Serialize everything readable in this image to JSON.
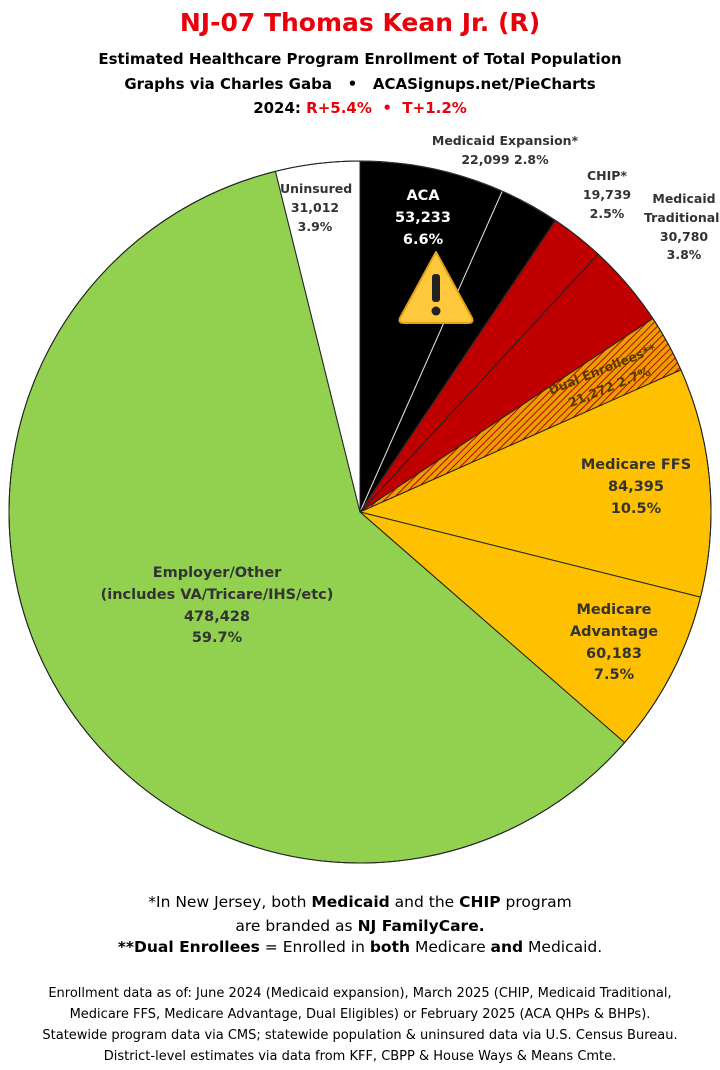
{
  "chart_data": {
    "type": "pie",
    "title": "NJ-07 Thomas Kean Jr. (R)",
    "subtitle": "Estimated Healthcare Program Enrollment of Total Population",
    "credit": {
      "left": "Graphs via Charles Gaba",
      "separator": "•",
      "right": "ACASignups.net/PieCharts"
    },
    "election": {
      "label": "2024:",
      "r": "R+5.4%",
      "separator": "•",
      "t": "T+1.2%",
      "color": "#e8000b"
    },
    "categories": [
      "ACA",
      "Medicaid Expansion*",
      "CHIP*",
      "Medicaid Traditional*",
      "Dual Enrollees**",
      "Medicare FFS",
      "Medicare Advantage",
      "Employer/Other",
      "Uninsured"
    ],
    "category_notes": [
      null,
      null,
      null,
      null,
      null,
      null,
      null,
      "(includes VA/Tricare/IHS/etc)",
      null
    ],
    "values": [
      53233,
      22099,
      19739,
      30780,
      21272,
      84395,
      60183,
      478428,
      31012
    ],
    "value_labels": [
      "53,233",
      "22,099",
      "19,739",
      "30,780",
      "21,272",
      "84,395",
      "60,183",
      "478,428",
      "31,012"
    ],
    "percent_labels": [
      "6.6%",
      "2.8%",
      "2.5%",
      "3.8%",
      "2.7%",
      "10.5%",
      "7.5%",
      "59.7%",
      "3.9%"
    ],
    "colors": [
      "#000000",
      "#000000",
      "#c00000",
      "#c00000",
      "#e8a000",
      "#ffc000",
      "#ffc000",
      "#92d050",
      "#ffffff"
    ],
    "hatch": {
      "index": 4,
      "color": "#c00000"
    },
    "footnotes": [
      [
        {
          "text": "*In New Jersey, both ",
          "bold": false
        },
        {
          "text": "Medicaid",
          "bold": true
        },
        {
          "text": " and the ",
          "bold": false
        },
        {
          "text": "CHIP",
          "bold": true
        },
        {
          "text": " program",
          "bold": false
        }
      ],
      [
        {
          "text": "are branded as ",
          "bold": false
        },
        {
          "text": "NJ FamilyCare.",
          "bold": true
        }
      ],
      [
        {
          "text": "**Dual Enrollees",
          "bold": true
        },
        {
          "text": " = Enrolled in ",
          "bold": false
        },
        {
          "text": "both",
          "bold": true
        },
        {
          "text": " Medicare ",
          "bold": false
        },
        {
          "text": "and",
          "bold": true
        },
        {
          "text": " Medicaid.",
          "bold": false
        }
      ]
    ],
    "sources": [
      "Enrollment data as of: June 2024 (Medicaid expansion), March 2025 (CHIP, Medicaid Traditional,",
      "Medicare FFS, Medicare Advantage, Dual Eligibles) or February 2025 (ACA QHPs & BHPs).",
      "Statewide program data via CMS; statewide population & uninsured data via U.S. Census Bureau.",
      "District-level estimates via data from KFF, CBPP & House Ways & Means Cmte."
    ]
  }
}
